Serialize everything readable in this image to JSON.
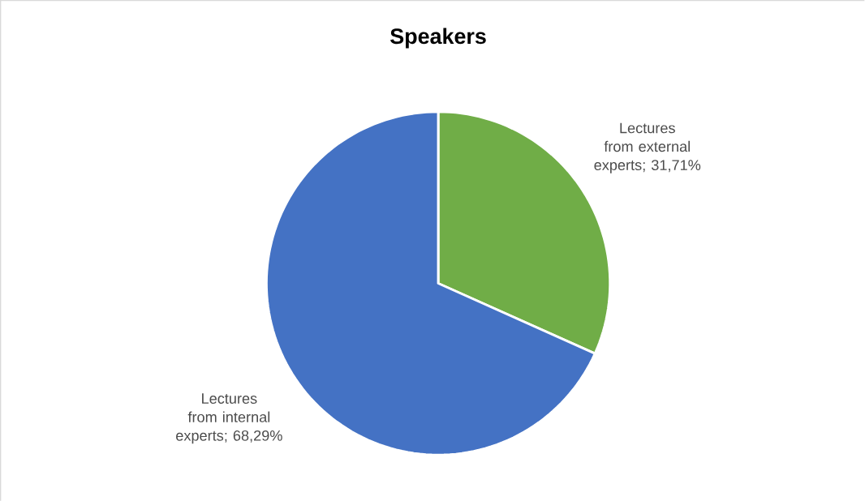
{
  "chart_data": {
    "type": "pie",
    "title": "Speakers",
    "categories": [
      "Lectures from external experts",
      "Lectures from internal experts"
    ],
    "values": [
      31.71,
      68.29
    ],
    "value_labels": [
      "; 31,71%",
      "; 68,29%"
    ],
    "colors": [
      "#70ad47",
      "#4472c4"
    ]
  }
}
